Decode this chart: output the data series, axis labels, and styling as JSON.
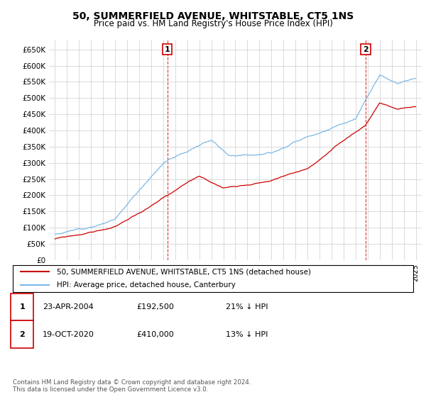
{
  "title": "50, SUMMERFIELD AVENUE, WHITSTABLE, CT5 1NS",
  "subtitle": "Price paid vs. HM Land Registry's House Price Index (HPI)",
  "ylim": [
    0,
    680000
  ],
  "yticks": [
    0,
    50000,
    100000,
    150000,
    200000,
    250000,
    300000,
    350000,
    400000,
    450000,
    500000,
    550000,
    600000,
    650000
  ],
  "ytick_labels": [
    "£0",
    "£50K",
    "£100K",
    "£150K",
    "£200K",
    "£250K",
    "£300K",
    "£350K",
    "£400K",
    "£450K",
    "£500K",
    "£550K",
    "£600K",
    "£650K"
  ],
  "hpi_color": "#7ab8e8",
  "price_color": "#cc0000",
  "annotation_color": "#cc0000",
  "grid_color": "#cccccc",
  "background_color": "#ffffff",
  "sale1_t": 2004.333,
  "sale2_t": 2020.833,
  "legend_entry1": "50, SUMMERFIELD AVENUE, WHITSTABLE, CT5 1NS (detached house)",
  "legend_entry2": "HPI: Average price, detached house, Canterbury",
  "table_row1": [
    "1",
    "23-APR-2004",
    "£192,500",
    "21% ↓ HPI"
  ],
  "table_row2": [
    "2",
    "19-OCT-2020",
    "£410,000",
    "13% ↓ HPI"
  ],
  "footer": "Contains HM Land Registry data © Crown copyright and database right 2024.\nThis data is licensed under the Open Government Licence v3.0.",
  "title_fontsize": 10,
  "subtitle_fontsize": 8.5,
  "tick_fontsize": 7.5,
  "legend_fontsize": 7.5,
  "table_fontsize": 8
}
